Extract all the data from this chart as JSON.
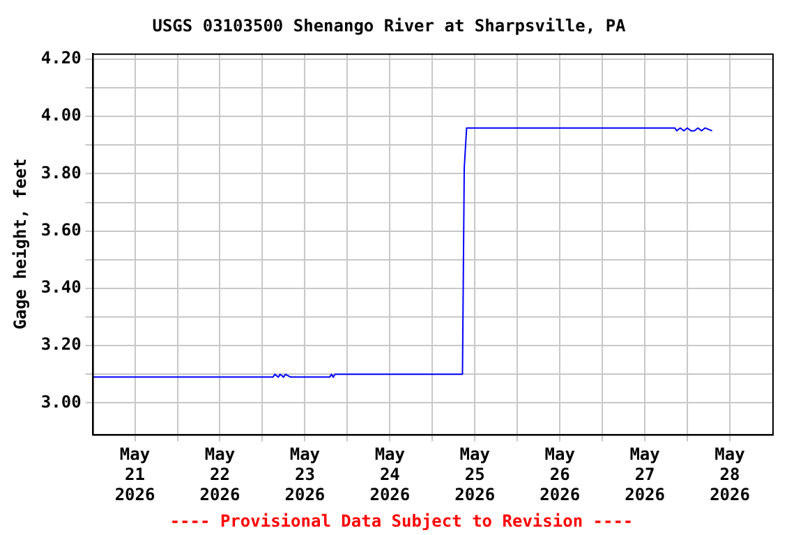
{
  "chart_data": {
    "type": "line",
    "title": "USGS 03103500 Shenango River at Sharpsville, PA",
    "ylabel": "Gage height, feet",
    "annotations": [
      "---- Provisional Data Subject to Revision ----"
    ],
    "x": [
      "2026-05-20T12:00",
      "2026-05-22T15:00",
      "2026-05-22T15:30",
      "2026-05-22T16:30",
      "2026-05-22T17:00",
      "2026-05-22T18:00",
      "2026-05-22T18:30",
      "2026-05-22T20:00",
      "2026-05-22T20:30",
      "2026-05-23T07:00",
      "2026-05-23T07:30",
      "2026-05-23T08:00",
      "2026-05-23T08:30",
      "2026-05-23T09:00",
      "2026-05-24T20:30",
      "2026-05-24T21:00",
      "2026-05-24T21:40",
      "2026-05-27T08:30",
      "2026-05-27T09:00",
      "2026-05-27T10:00",
      "2026-05-27T11:00",
      "2026-05-27T12:00",
      "2026-05-27T13:00",
      "2026-05-27T14:00",
      "2026-05-27T15:00",
      "2026-05-27T16:00",
      "2026-05-27T17:00",
      "2026-05-27T19:00"
    ],
    "series": [
      {
        "color": "#0000ff",
        "values": [
          3.09,
          3.09,
          3.1,
          3.09,
          3.1,
          3.09,
          3.1,
          3.09,
          3.09,
          3.09,
          3.1,
          3.09,
          3.1,
          3.1,
          3.1,
          3.82,
          3.96,
          3.96,
          3.95,
          3.96,
          3.95,
          3.96,
          3.95,
          3.95,
          3.96,
          3.95,
          3.96,
          3.95
        ]
      }
    ],
    "xlim": [
      "2026-05-20T12:00",
      "2026-05-28T12:00"
    ],
    "xticks": [
      {
        "value": "2026-05-21",
        "label": "May 21 2026"
      },
      {
        "value": "2026-05-21T12:00",
        "label": null
      },
      {
        "value": "2026-05-22",
        "label": "May 22 2026"
      },
      {
        "value": "2026-05-22T12:00",
        "label": null
      },
      {
        "value": "2026-05-23",
        "label": "May 23 2026"
      },
      {
        "value": "2026-05-23T12:00",
        "label": null
      },
      {
        "value": "2026-05-24",
        "label": "May 24 2026"
      },
      {
        "value": "2026-05-24T12:00",
        "label": null
      },
      {
        "value": "2026-05-25",
        "label": "May 25 2026"
      },
      {
        "value": "2026-05-25T12:00",
        "label": null
      },
      {
        "value": "2026-05-26",
        "label": "May 26 2026"
      },
      {
        "value": "2026-05-26T12:00",
        "label": null
      },
      {
        "value": "2026-05-27",
        "label": "May 27 2026"
      },
      {
        "value": "2026-05-27T12:00",
        "label": null
      },
      {
        "value": "2026-05-28",
        "label": "May 28 2026"
      }
    ],
    "ylim": [
      2.89,
      4.22
    ],
    "yticks": [
      {
        "value": 3.0,
        "label": "3.00"
      },
      {
        "value": 3.1,
        "label": null
      },
      {
        "value": 3.2,
        "label": "3.20"
      },
      {
        "value": 3.3,
        "label": null
      },
      {
        "value": 3.4,
        "label": "3.40"
      },
      {
        "value": 3.5,
        "label": null
      },
      {
        "value": 3.6,
        "label": "3.60"
      },
      {
        "value": 3.7,
        "label": null
      },
      {
        "value": 3.8,
        "label": "3.80"
      },
      {
        "value": 3.9,
        "label": null
      },
      {
        "value": 4.0,
        "label": "4.00"
      },
      {
        "value": 4.1,
        "label": null
      },
      {
        "value": 4.2,
        "label": "4.20"
      }
    ],
    "grid": true,
    "legend": false,
    "marker": "none",
    "line_style": "solid"
  }
}
